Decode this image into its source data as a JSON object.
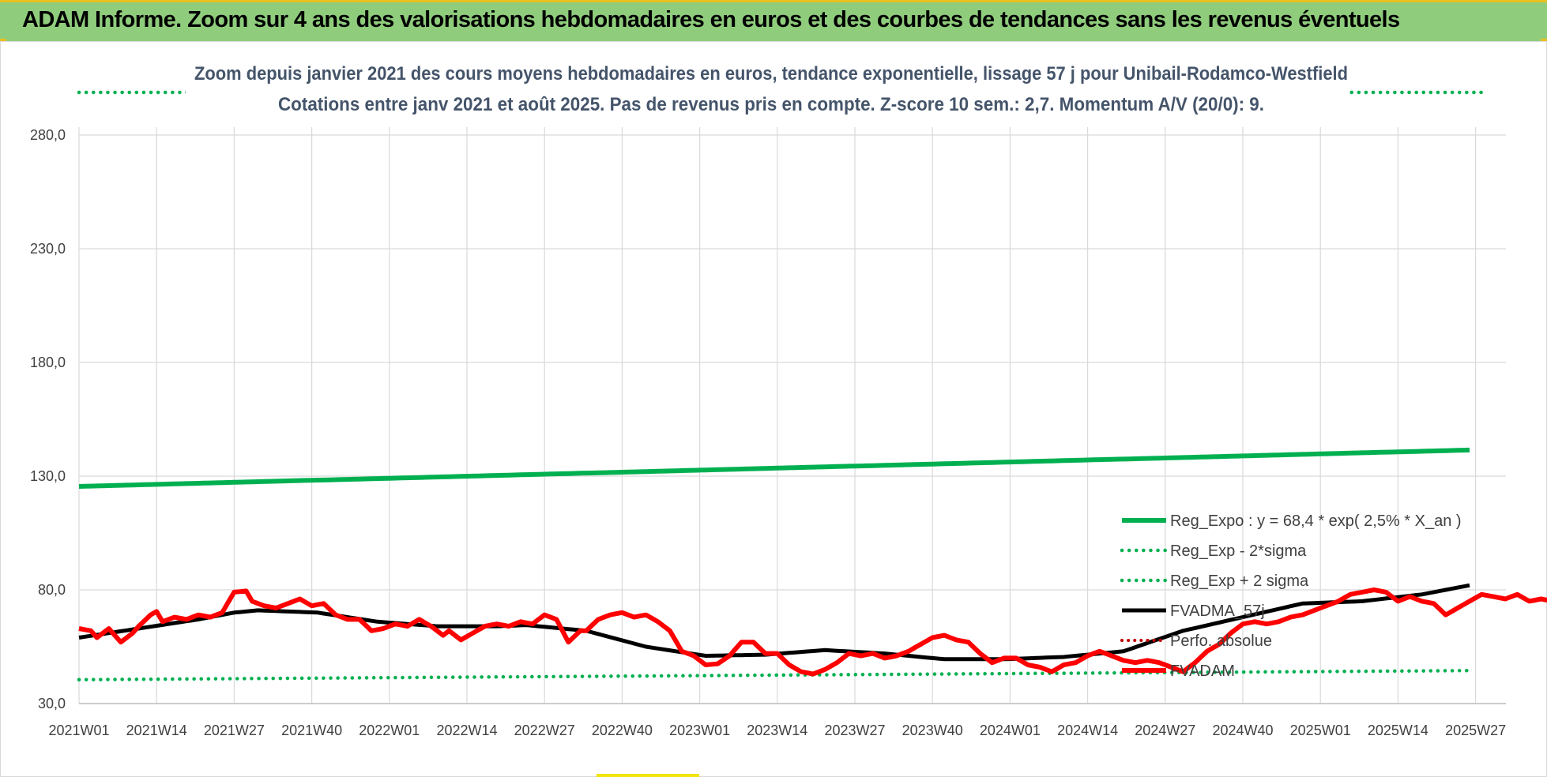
{
  "banner": {
    "title": "ADAM Informe. Zoom sur 4 ans des valorisations hebdomadaires en euros et des courbes de tendances sans les revenus éventuels"
  },
  "colors": {
    "banner": "#8fcd7c",
    "reg_expo": "#00b050",
    "fvadam": "#ff0000",
    "fvadma": "#000000",
    "perfo": "#c00000"
  },
  "chart_data": {
    "type": "line",
    "title_lines": [
      "Zoom depuis janvier 2021 des cours moyens hebdomadaires en euros, tendance exponentielle, lissage 57 j pour Unibail-Rodamco-Westfield",
      "Cotations entre janv 2021 et août 2025.  Pas de revenus pris en compte. Z-score 10 sem.: 2,7. Momentum A/V (20/0): 9."
    ],
    "ylim": [
      30,
      280
    ],
    "ytick_labels": [
      "30,0",
      "80,0",
      "130,0",
      "180,0",
      "230,0",
      "280,0"
    ],
    "xtick_labels": [
      "2021W01",
      "2021W14",
      "2021W27",
      "2021W40",
      "2022W01",
      "2022W14",
      "2022W27",
      "2022W40",
      "2023W01",
      "2023W14",
      "2023W27",
      "2023W40",
      "2024W01",
      "2024W14",
      "2024W27",
      "2024W40",
      "2025W01",
      "2025W14",
      "2025W27"
    ],
    "grid": true,
    "legend_position": "right",
    "series": [
      {
        "name": "Reg_Expo : y = 68,4 * exp( 2,5% *  X_an )",
        "style": "solid-green",
        "anchors": [
          [
            0,
            125.5
          ],
          [
            233,
            141.5
          ]
        ]
      },
      {
        "name": "Reg_Exp - 2*sigma",
        "style": "dotted-green",
        "anchors": [
          [
            0,
            40.5
          ],
          [
            233,
            44.5
          ]
        ]
      },
      {
        "name": "Reg_Exp + 2 sigma",
        "style": "dotted-green-upper",
        "anchors": [
          [
            0,
            300.5
          ],
          [
            233,
            300.5
          ]
        ]
      },
      {
        "name": "FVADMA_57j",
        "style": "solid-black",
        "anchors": [
          [
            0,
            59
          ],
          [
            10,
            63
          ],
          [
            20,
            67
          ],
          [
            26,
            70
          ],
          [
            30,
            71
          ],
          [
            40,
            70
          ],
          [
            50,
            66
          ],
          [
            60,
            64
          ],
          [
            70,
            64
          ],
          [
            75,
            64.5
          ],
          [
            85,
            62
          ],
          [
            95,
            55
          ],
          [
            105,
            51
          ],
          [
            115,
            51.5
          ],
          [
            125,
            53.5
          ],
          [
            135,
            52
          ],
          [
            145,
            49.5
          ],
          [
            155,
            49.5
          ],
          [
            165,
            50.5
          ],
          [
            175,
            53
          ],
          [
            185,
            62
          ],
          [
            195,
            68
          ],
          [
            205,
            74
          ],
          [
            215,
            75
          ],
          [
            225,
            78
          ],
          [
            233,
            82
          ]
        ]
      },
      {
        "name": "Perfo. absolue",
        "style": "dotted-red",
        "anchors": []
      },
      {
        "name": "FVADAM",
        "style": "solid-red",
        "anchors": [
          [
            0,
            63
          ],
          [
            2,
            62
          ],
          [
            3,
            59
          ],
          [
            5,
            63
          ],
          [
            7,
            57
          ],
          [
            9,
            61
          ],
          [
            10,
            64
          ],
          [
            12,
            69
          ],
          [
            13,
            70.5
          ],
          [
            14,
            66
          ],
          [
            16,
            68
          ],
          [
            18,
            67
          ],
          [
            20,
            69
          ],
          [
            22,
            68
          ],
          [
            24,
            70
          ],
          [
            26,
            79
          ],
          [
            28,
            79.5
          ],
          [
            29,
            75
          ],
          [
            31,
            73
          ],
          [
            33,
            72
          ],
          [
            35,
            74
          ],
          [
            37,
            76
          ],
          [
            39,
            73
          ],
          [
            41,
            74
          ],
          [
            43,
            69
          ],
          [
            45,
            67
          ],
          [
            47,
            67
          ],
          [
            49,
            62
          ],
          [
            51,
            63
          ],
          [
            53,
            65
          ],
          [
            55,
            64
          ],
          [
            57,
            67
          ],
          [
            59,
            64
          ],
          [
            61,
            60
          ],
          [
            62,
            62
          ],
          [
            64,
            58
          ],
          [
            66,
            61
          ],
          [
            68,
            64
          ],
          [
            70,
            65
          ],
          [
            72,
            64
          ],
          [
            74,
            66
          ],
          [
            76,
            65
          ],
          [
            78,
            69
          ],
          [
            80,
            67
          ],
          [
            82,
            57
          ],
          [
            84,
            62
          ],
          [
            85,
            62
          ],
          [
            87,
            67
          ],
          [
            89,
            69
          ],
          [
            91,
            70
          ],
          [
            93,
            68
          ],
          [
            95,
            69
          ],
          [
            97,
            66
          ],
          [
            99,
            62
          ],
          [
            101,
            53
          ],
          [
            103,
            51
          ],
          [
            105,
            47
          ],
          [
            107,
            47.5
          ],
          [
            109,
            51
          ],
          [
            111,
            57
          ],
          [
            113,
            57
          ],
          [
            115,
            52
          ],
          [
            117,
            52
          ],
          [
            119,
            47
          ],
          [
            121,
            44
          ],
          [
            123,
            43
          ],
          [
            125,
            45
          ],
          [
            127,
            48
          ],
          [
            129,
            52
          ],
          [
            131,
            51
          ],
          [
            133,
            52
          ],
          [
            135,
            50
          ],
          [
            137,
            51
          ],
          [
            139,
            53
          ],
          [
            141,
            56
          ],
          [
            143,
            59
          ],
          [
            145,
            60
          ],
          [
            147,
            58
          ],
          [
            149,
            57
          ],
          [
            151,
            52
          ],
          [
            153,
            48
          ],
          [
            155,
            50
          ],
          [
            157,
            50
          ],
          [
            159,
            47
          ],
          [
            161,
            46
          ],
          [
            163,
            44
          ],
          [
            165,
            47
          ],
          [
            167,
            48
          ],
          [
            169,
            51
          ],
          [
            171,
            53
          ],
          [
            173,
            51
          ],
          [
            175,
            49
          ],
          [
            177,
            48
          ],
          [
            179,
            49
          ],
          [
            181,
            48
          ],
          [
            183,
            46
          ],
          [
            185,
            44
          ],
          [
            187,
            48
          ],
          [
            189,
            53
          ],
          [
            191,
            56
          ],
          [
            193,
            61
          ],
          [
            195,
            65
          ],
          [
            197,
            66
          ],
          [
            199,
            65
          ],
          [
            201,
            66
          ],
          [
            203,
            68
          ],
          [
            205,
            69
          ],
          [
            207,
            71
          ],
          [
            209,
            73
          ],
          [
            211,
            75
          ],
          [
            213,
            78
          ],
          [
            215,
            79
          ],
          [
            217,
            80
          ],
          [
            219,
            79
          ],
          [
            221,
            75
          ],
          [
            223,
            77
          ],
          [
            225,
            75
          ],
          [
            227,
            74
          ],
          [
            229,
            69
          ],
          [
            231,
            72
          ],
          [
            233,
            75
          ],
          [
            235,
            78
          ],
          [
            237,
            77
          ],
          [
            239,
            76
          ],
          [
            241,
            78
          ],
          [
            243,
            75
          ],
          [
            245,
            76
          ],
          [
            247,
            75
          ],
          [
            249,
            72
          ],
          [
            251,
            73
          ],
          [
            253,
            76
          ],
          [
            255,
            79
          ],
          [
            257,
            81
          ],
          [
            259,
            80
          ],
          [
            261,
            76
          ],
          [
            263,
            77
          ],
          [
            265,
            70
          ],
          [
            267,
            73
          ],
          [
            269,
            75
          ],
          [
            271,
            76
          ],
          [
            273,
            79
          ],
          [
            275,
            82
          ],
          [
            277,
            83
          ],
          [
            279,
            81
          ],
          [
            281,
            80
          ],
          [
            283,
            82
          ],
          [
            284,
            85
          ]
        ]
      }
    ]
  },
  "legend": {
    "items": [
      {
        "label": "Reg_Expo : y = 68,4 * exp( 2,5% *  X_an )",
        "style": "solid-green"
      },
      {
        "label": "Reg_Exp - 2*sigma",
        "style": "dotted-green"
      },
      {
        "label": "Reg_Exp + 2 sigma",
        "style": "dotted-green"
      },
      {
        "label": "FVADMA_57j",
        "style": "solid-black"
      },
      {
        "label": "Perfo. absolue",
        "style": "dotted-red"
      },
      {
        "label": "FVADAM",
        "style": "solid-red"
      }
    ]
  }
}
